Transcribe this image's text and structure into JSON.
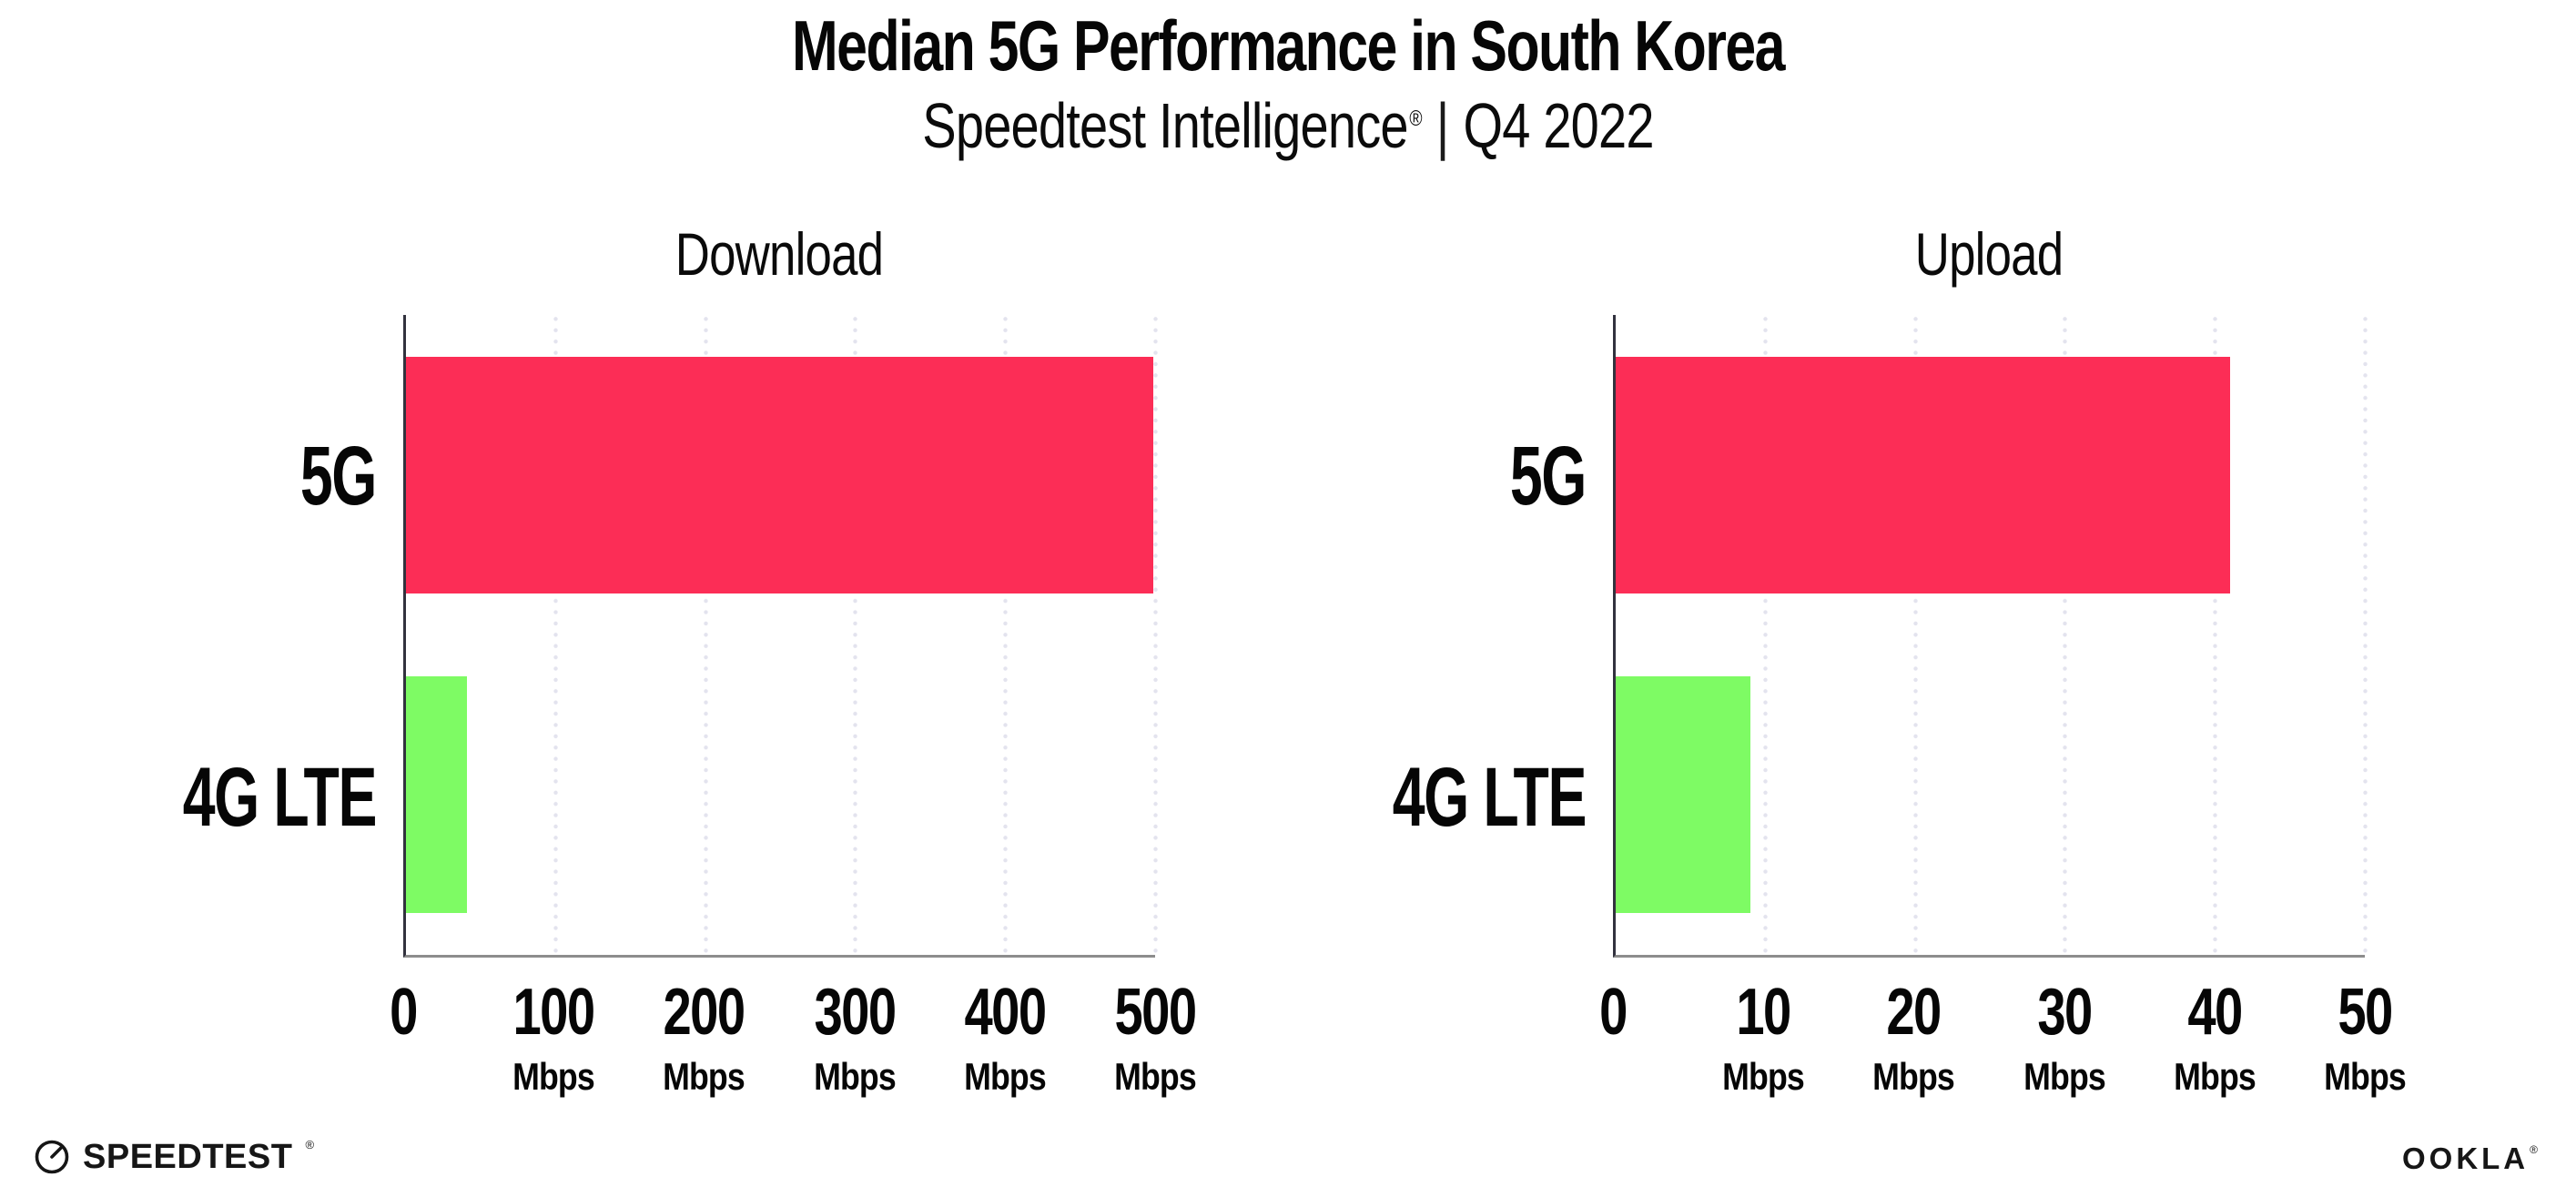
{
  "header": {
    "title": "Median 5G Performance in South Korea",
    "subtitle": {
      "brand": "Speedtest Intelligence",
      "registered_mark": "®",
      "separator": "|",
      "period": "Q4 2022"
    }
  },
  "chart_data": [
    {
      "type": "bar",
      "orientation": "horizontal",
      "title": "Download",
      "categories": [
        "5G",
        "4G LTE"
      ],
      "values": [
        499,
        41
      ],
      "unit": "Mbps",
      "xlim": [
        0,
        500
      ],
      "xticks": [
        0,
        100,
        200,
        300,
        400,
        500
      ],
      "xtick_unit_on_first": false,
      "grid": "vertical-dotted",
      "legend": "none",
      "bar_colors": [
        "#FC2D56",
        "#7EFB64"
      ]
    },
    {
      "type": "bar",
      "orientation": "horizontal",
      "title": "Upload",
      "categories": [
        "5G",
        "4G LTE"
      ],
      "values": [
        41,
        9
      ],
      "unit": "Mbps",
      "xlim": [
        0,
        50
      ],
      "xticks": [
        0,
        10,
        20,
        30,
        40,
        50
      ],
      "xtick_unit_on_first": false,
      "grid": "vertical-dotted",
      "legend": "none",
      "bar_colors": [
        "#FC2D56",
        "#7EFB64"
      ]
    }
  ],
  "colors": {
    "bar_5g": "#FC2D56",
    "bar_4g_lte": "#7EFB64",
    "gridline": "#E3E3EE",
    "x_axis": "#8D8D8D",
    "y_axis": "#32323E",
    "text": "#060606"
  },
  "footer": {
    "speedtest_label": "SPEEDTEST",
    "speedtest_mark": "®",
    "ookla_label": "OOKLA",
    "ookla_mark": "®"
  }
}
